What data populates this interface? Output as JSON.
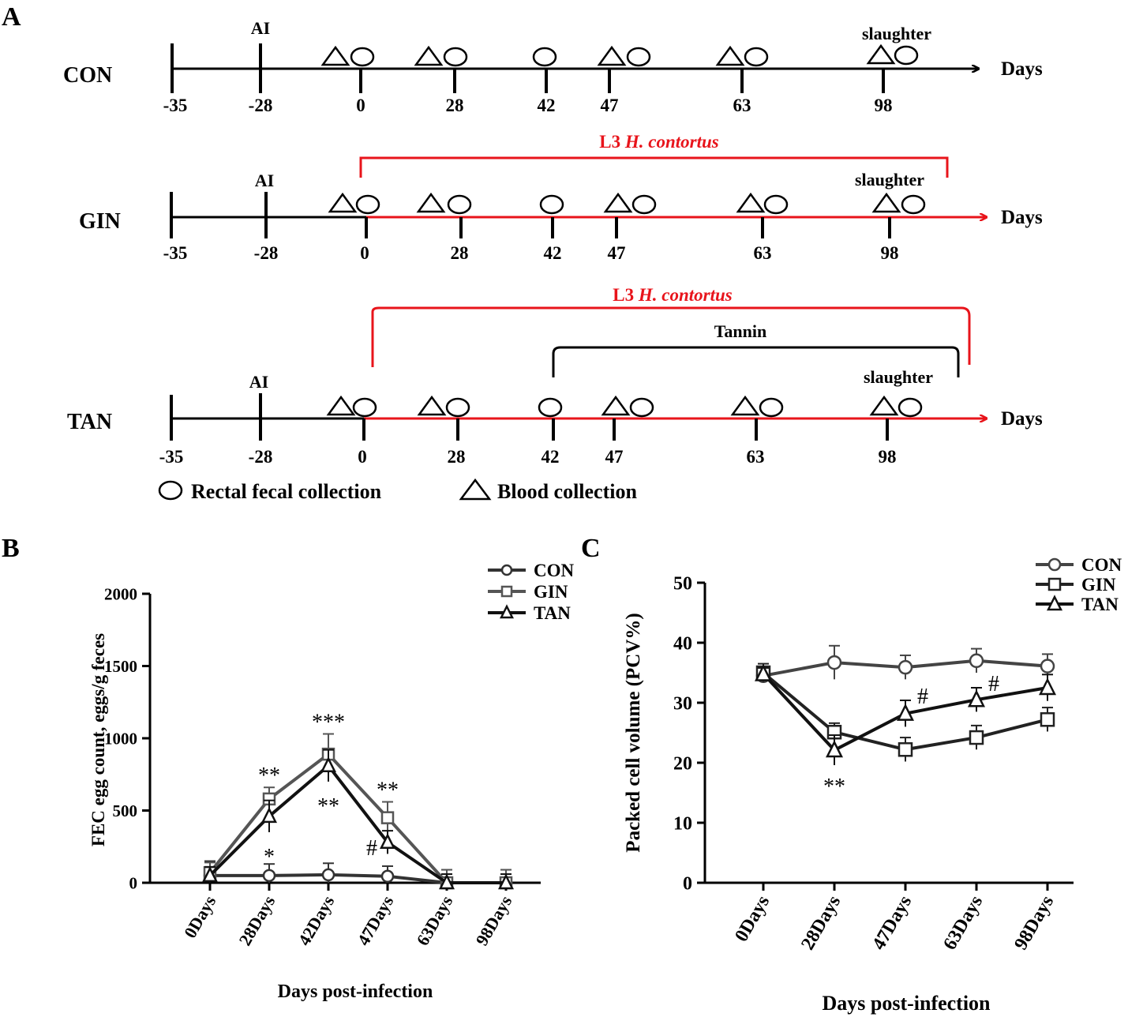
{
  "panel_labels": {
    "a": "A",
    "b": "B",
    "c": "C"
  },
  "timeline": {
    "axis_label": "Days",
    "ai_label": "AI",
    "slaughter_label": "slaughter",
    "infection_label_prefix": "L3 ",
    "infection_label_species": "H. contortus",
    "tannin_label": "Tannin",
    "legend_fecal": "Rectal fecal collection",
    "legend_blood": "Blood collection",
    "groups": [
      {
        "name": "CON",
        "ticks": [
          "-35",
          "-28",
          "0",
          "28",
          "42",
          "47",
          "63",
          "98"
        ]
      },
      {
        "name": "GIN",
        "ticks": [
          "-35",
          "-28",
          "0",
          "28",
          "42",
          "47",
          "63",
          "98"
        ]
      },
      {
        "name": "TAN",
        "ticks": [
          "-35",
          "-28",
          "0",
          "28",
          "42",
          "47",
          "63",
          "98"
        ]
      }
    ],
    "colors": {
      "axis": "#000000",
      "infection": "#e8141b"
    }
  },
  "chart_data": [
    {
      "panel": "B",
      "type": "line",
      "ylabel": "FEC egg count, eggs/g feces",
      "xlabel": "Days post-infection",
      "categories": [
        "0Days",
        "28Days",
        "42Days",
        "47Days",
        "63Days",
        "98Days"
      ],
      "ylim": [
        0,
        2000
      ],
      "yticks": [
        0,
        500,
        1000,
        1500,
        2000
      ],
      "legend_position": "top-right",
      "series": [
        {
          "name": "CON",
          "marker": "circle",
          "color": "#333333",
          "values": [
            50,
            50,
            55,
            45,
            0,
            0
          ],
          "errors": [
            100,
            80,
            80,
            70,
            90,
            90
          ]
        },
        {
          "name": "GIN",
          "marker": "square",
          "color": "#555555",
          "values": [
            70,
            580,
            890,
            450,
            0,
            0
          ],
          "errors": [
            70,
            80,
            140,
            110,
            90,
            90
          ]
        },
        {
          "name": "TAN",
          "marker": "triangle",
          "color": "#111111",
          "values": [
            50,
            460,
            810,
            280,
            0,
            0
          ],
          "errors": [
            60,
            110,
            110,
            80,
            60,
            60
          ]
        }
      ],
      "annotations": [
        {
          "category": "28Days",
          "text": "**",
          "position": "above"
        },
        {
          "category": "28Days",
          "text": "*",
          "position": "below"
        },
        {
          "category": "42Days",
          "text": "***",
          "position": "above"
        },
        {
          "category": "42Days",
          "text": "**",
          "position": "below"
        },
        {
          "category": "47Days",
          "text": "**",
          "position": "above"
        },
        {
          "category": "47Days",
          "text": "#",
          "position": "left"
        }
      ]
    },
    {
      "panel": "C",
      "type": "line",
      "ylabel": "Packed cell volume (PCV%)",
      "xlabel": "Days post-infection",
      "categories": [
        "0Days",
        "28Days",
        "47Days",
        "63Days",
        "98Days"
      ],
      "ylim": [
        0,
        50
      ],
      "yticks": [
        0,
        10,
        20,
        30,
        40,
        50
      ],
      "legend_position": "top-right",
      "series": [
        {
          "name": "CON",
          "marker": "circle",
          "color": "#444444",
          "values": [
            34.5,
            36.7,
            35.9,
            37.0,
            36.1
          ],
          "errors": [
            1.2,
            2.8,
            2.0,
            2.0,
            2.0
          ]
        },
        {
          "name": "GIN",
          "marker": "square",
          "color": "#222222",
          "values": [
            35.0,
            25.1,
            22.2,
            24.2,
            27.2
          ],
          "errors": [
            1.5,
            1.5,
            2.0,
            2.0,
            2.0
          ]
        },
        {
          "name": "TAN",
          "marker": "triangle",
          "color": "#111111",
          "values": [
            34.8,
            22.1,
            28.2,
            30.5,
            32.5
          ],
          "errors": [
            1.0,
            2.5,
            2.2,
            2.0,
            2.2
          ]
        }
      ],
      "annotations": [
        {
          "category": "28Days",
          "text": "**",
          "position": "below"
        },
        {
          "category": "47Days",
          "text": "#",
          "position": "right"
        },
        {
          "category": "63Days",
          "text": "#",
          "position": "right"
        }
      ]
    }
  ]
}
